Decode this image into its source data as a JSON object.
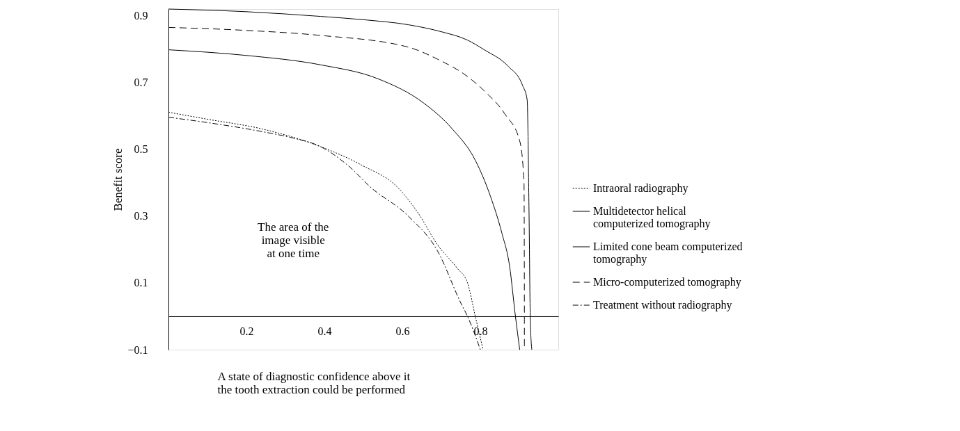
{
  "chart_data": {
    "type": "line",
    "xlabel": "A state of diagnostic confidence above it\nthe tooth extraction could be performed",
    "ylabel": "Benefit score",
    "xlim": [
      0,
      1
    ],
    "xticks": [
      0.2,
      0.4,
      0.6,
      0.8
    ],
    "ylim": [
      -0.1,
      0.92
    ],
    "yticks": [
      -0.1,
      0.1,
      0.3,
      0.5,
      0.7,
      0.9
    ],
    "grid": false,
    "legend": "right",
    "marker": "none",
    "annotations": [
      "The area of the\nimage visible\nat one time"
    ],
    "series": [
      {
        "name": "Intraoral radiography",
        "color": "#000000",
        "line_style": "dotted",
        "x": [
          0,
          0.1,
          0.24,
          0.39,
          0.5,
          0.586,
          0.64,
          0.69,
          0.74,
          0.767,
          0.787,
          0.807
        ],
        "values": [
          0.611,
          0.59,
          0.561,
          0.508,
          0.45,
          0.388,
          0.31,
          0.214,
          0.145,
          0.1,
          0,
          -0.1
        ]
      },
      {
        "name": "Multidetector helical\ncomputerized tomography",
        "color": "#000000",
        "line_style": "solid",
        "x": [
          0,
          0.2,
          0.39,
          0.54,
          0.654,
          0.728,
          0.788,
          0.826,
          0.855,
          0.875,
          0.89,
          0.901
        ],
        "values": [
          0.798,
          0.781,
          0.753,
          0.71,
          0.639,
          0.561,
          0.465,
          0.359,
          0.25,
          0.15,
          0,
          -0.1
        ]
      },
      {
        "name": "Limited cone beam computerized\ntomography",
        "color": "#000000",
        "line_style": "solid",
        "x": [
          0,
          0.2,
          0.39,
          0.5,
          0.615,
          0.7,
          0.767,
          0.81,
          0.871,
          0.908,
          0.92,
          0.925,
          0.928,
          0.932
        ],
        "values": [
          0.92,
          0.912,
          0.898,
          0.888,
          0.873,
          0.852,
          0.827,
          0.798,
          0.749,
          0.692,
          0.649,
          0.3,
          0,
          -0.1
        ]
      },
      {
        "name": "Micro-computerized tomography",
        "color": "#000000",
        "line_style": "dashed",
        "x": [
          0,
          0.2,
          0.39,
          0.615,
          0.69,
          0.767,
          0.81,
          0.864,
          0.901,
          0.912,
          0.913,
          0.913
        ],
        "values": [
          0.865,
          0.856,
          0.841,
          0.806,
          0.77,
          0.718,
          0.675,
          0.604,
          0.525,
          0.4,
          0,
          -0.1
        ]
      },
      {
        "name": "Treatment without radiography",
        "color": "#000000",
        "line_style": "dashdot",
        "x": [
          0,
          0.1,
          0.24,
          0.315,
          0.39,
          0.465,
          0.517,
          0.615,
          0.69,
          0.751,
          0.767,
          0.8
        ],
        "values": [
          0.596,
          0.58,
          0.553,
          0.535,
          0.508,
          0.447,
          0.388,
          0.3,
          0.196,
          0.037,
          0,
          -0.1
        ]
      }
    ]
  }
}
